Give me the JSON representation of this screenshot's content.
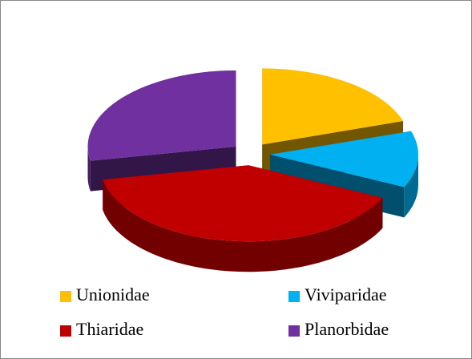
{
  "chart_data": {
    "type": "pie3d",
    "categories": [
      "Unionidae",
      "Viviparidae",
      "Thiaridae",
      "Planorbidae"
    ],
    "values": [
      20,
      12,
      40,
      28
    ],
    "colors": [
      "#ffc000",
      "#00b0f0",
      "#c00000",
      "#7030a0"
    ],
    "legend": "bottom"
  }
}
